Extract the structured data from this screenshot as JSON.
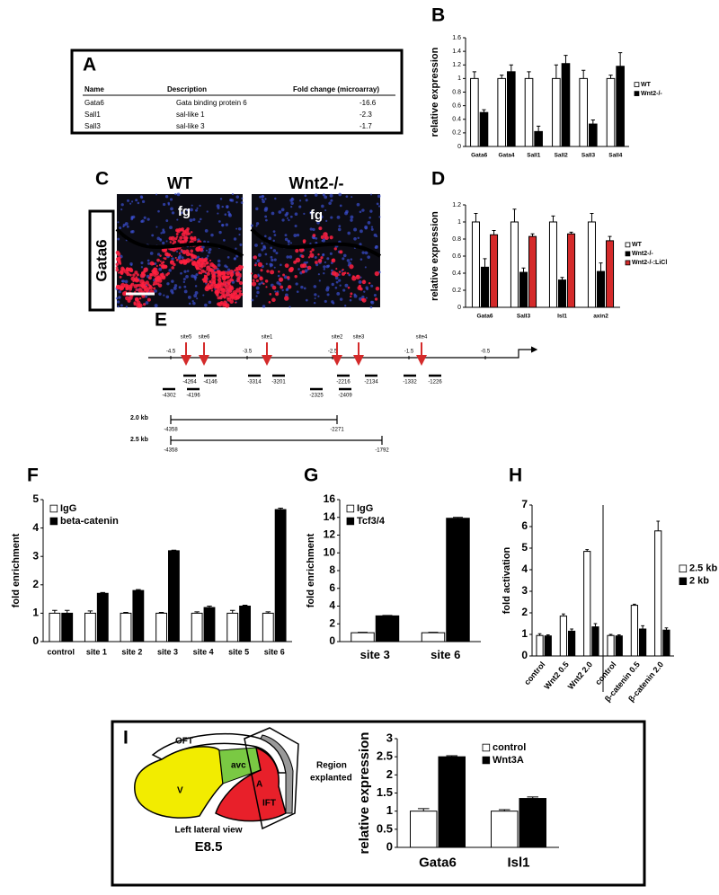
{
  "table_a": {
    "panel_label": "A",
    "header": [
      "Name",
      "Description",
      "Fold change (microarray)"
    ],
    "rows": [
      [
        "Gata6",
        "Gata binding protein 6",
        -16.6
      ],
      [
        "Sall1",
        "sal-like 1",
        -2.3
      ],
      [
        "Sall3",
        "sal-like 3",
        -1.7
      ]
    ]
  },
  "image_c": {
    "panel_label": "C",
    "stain": "Gata6",
    "columns": [
      "WT",
      "Wnt2-/-"
    ],
    "tissue_labels": [
      "fg",
      "fg"
    ]
  },
  "diagram_e": {
    "panel_label": "E",
    "scale_labels": [
      "-4.5",
      "-3.5",
      "-2.5",
      "-1.5",
      "-0.5"
    ],
    "sites": [
      "site5",
      "site6",
      "site1",
      "site2",
      "site3",
      "site4"
    ],
    "primers_row1": [
      "-4264",
      "-4146",
      "-3314",
      "-3201",
      "-2216",
      "-2134",
      "-1332",
      "-1226"
    ],
    "primers_row2": [
      "-4302",
      "-4196",
      "-2325",
      "-2409"
    ],
    "constructs": [
      {
        "name": "2.0 kb",
        "start": "-4358",
        "end": "-2271"
      },
      {
        "name": "2.5 kb",
        "start": "-4358",
        "end": "-1792"
      }
    ]
  },
  "diagram_i": {
    "panel_label": "I",
    "regions": [
      "OFT",
      "V",
      "avc",
      "A",
      "IFT"
    ],
    "region_label": [
      "Region",
      "explanted"
    ],
    "view": "Left lateral view",
    "stage": "E8.5"
  },
  "chart_data": [
    {
      "type": "bar",
      "panel_label": "B",
      "y_label": "relative expression",
      "categories": [
        "Gata6",
        "Gata4",
        "Sall1",
        "Sall2",
        "Sall3",
        "Sall4"
      ],
      "series": [
        {
          "name": "WT",
          "color": "#ffffff",
          "values": [
            1,
            1,
            1,
            1,
            1,
            1
          ],
          "errors": [
            0.1,
            0.05,
            0.1,
            0.2,
            0.12,
            0.05
          ]
        },
        {
          "name": "Wnt2-/-",
          "color": "#000000",
          "values": [
            0.5,
            1.1,
            0.22,
            1.22,
            0.33,
            1.18
          ],
          "errors": [
            0.04,
            0.1,
            0.08,
            0.12,
            0.06,
            0.2
          ]
        }
      ],
      "ylim": [
        0,
        1.6
      ],
      "yticks": [
        0,
        0.2,
        0.4,
        0.6,
        0.8,
        1,
        1.2,
        1.4,
        1.6
      ],
      "legend": "right"
    },
    {
      "type": "bar",
      "panel_label": "D",
      "y_label": "relative expression",
      "categories": [
        "Gata6",
        "Sall3",
        "Isl1",
        "axin2"
      ],
      "series": [
        {
          "name": "WT",
          "color": "#ffffff",
          "values": [
            1,
            1,
            1,
            1
          ],
          "errors": [
            0.1,
            0.15,
            0.07,
            0.1
          ]
        },
        {
          "name": "Wnt2-/-",
          "color": "#000000",
          "values": [
            0.47,
            0.41,
            0.32,
            0.42
          ],
          "errors": [
            0.1,
            0.05,
            0.03,
            0.1
          ]
        },
        {
          "name": "Wnt2-/-:LiCl",
          "color": "#d42a2a",
          "values": [
            0.85,
            0.83,
            0.86,
            0.78
          ],
          "errors": [
            0.05,
            0.03,
            0.02,
            0.05
          ]
        }
      ],
      "ylim": [
        0,
        1.2
      ],
      "yticks": [
        0,
        0.2,
        0.4,
        0.6,
        0.8,
        1,
        1.2
      ],
      "legend": "right"
    },
    {
      "type": "bar",
      "panel_label": "F",
      "y_label": "fold enrichment",
      "categories": [
        "control",
        "site 1",
        "site 2",
        "site 3",
        "site 4",
        "site 5",
        "site 6"
      ],
      "series": [
        {
          "name": "IgG",
          "color": "#ffffff",
          "values": [
            1,
            1,
            1,
            1,
            1,
            1,
            1
          ],
          "errors": [
            0.1,
            0.08,
            0.03,
            0.03,
            0.05,
            0.1,
            0.05
          ]
        },
        {
          "name": "beta-catenin",
          "color": "#000000",
          "values": [
            1,
            1.7,
            1.8,
            3.2,
            1.2,
            1.25,
            4.65
          ],
          "errors": [
            0.1,
            0.03,
            0.03,
            0.02,
            0.05,
            0.03,
            0.05
          ]
        }
      ],
      "ylim": [
        0,
        5
      ],
      "yticks": [
        0,
        1,
        2,
        3,
        4,
        5
      ],
      "legend": "upper left"
    },
    {
      "type": "bar",
      "panel_label": "G",
      "y_label": "fold enrichment",
      "categories": [
        "site 3",
        "site 6"
      ],
      "series": [
        {
          "name": "IgG",
          "color": "#ffffff",
          "values": [
            1,
            1
          ],
          "errors": [
            0.05,
            0.05
          ]
        },
        {
          "name": "Tcf3/4",
          "color": "#000000",
          "values": [
            2.9,
            13.9
          ],
          "errors": [
            0.05,
            0.1
          ]
        }
      ],
      "ylim": [
        0,
        16
      ],
      "yticks": [
        0,
        2,
        4,
        6,
        8,
        10,
        12,
        14,
        16
      ],
      "legend": "upper left"
    },
    {
      "type": "bar",
      "panel_label": "H",
      "y_label": "fold activation",
      "categories": [
        "control",
        "Wnt2 0.5",
        "Wnt2 2.0",
        "control",
        "β-catenin 0.5",
        "β-catenin 2.0"
      ],
      "series": [
        {
          "name": "2.5 kb",
          "color": "#ffffff",
          "values": [
            0.95,
            1.85,
            4.85,
            0.95,
            2.35,
            5.8
          ],
          "errors": [
            0.08,
            0.1,
            0.08,
            0.05,
            0.05,
            0.45
          ]
        },
        {
          "name": "2 kb",
          "color": "#000000",
          "values": [
            0.93,
            1.15,
            1.35,
            0.93,
            1.25,
            1.2
          ],
          "errors": [
            0.05,
            0.1,
            0.15,
            0.05,
            0.15,
            0.1
          ]
        }
      ],
      "ylim": [
        0,
        7
      ],
      "yticks": [
        0,
        1,
        2,
        3,
        4,
        5,
        6,
        7
      ],
      "legend": "right"
    },
    {
      "type": "bar",
      "y_label": "relative expression",
      "categories": [
        "Gata6",
        "Isl1"
      ],
      "series": [
        {
          "name": "control",
          "color": "#ffffff",
          "values": [
            1,
            1
          ],
          "errors": [
            0.07,
            0.04
          ]
        },
        {
          "name": "Wnt3A",
          "color": "#000000",
          "values": [
            2.5,
            1.35
          ],
          "errors": [
            0.03,
            0.04
          ]
        }
      ],
      "ylim": [
        0,
        3
      ],
      "yticks": [
        0,
        0.5,
        1,
        1.5,
        2,
        2.5,
        3
      ],
      "legend": "upper right"
    }
  ]
}
